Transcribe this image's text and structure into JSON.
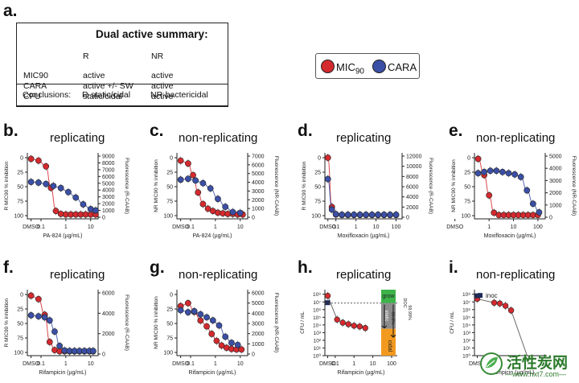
{
  "summary": {
    "label": "a.",
    "title": "Dual active summary:",
    "col_r": "R",
    "col_nr": "NR",
    "rows": [
      {
        "name": "MIC90",
        "r": "active",
        "nr": "active"
      },
      {
        "name": "CARA",
        "r": "active +/- SW",
        "nr": "active"
      },
      {
        "name": "CFU",
        "r": "static/cidal",
        "nr": "active"
      }
    ],
    "conclusion_label": "Conclusions:",
    "conclusion_r": "R-static/cidal",
    "conclusion_nr": "NR-bactericidal"
  },
  "legend": {
    "mic_label": "MIC",
    "mic_sub": "90",
    "cara_label": "CARA",
    "mic_color": "#d42a2f",
    "cara_color": "#3b4fa6"
  },
  "colors": {
    "red": "#d42a2f",
    "blue": "#3b4fa6",
    "grow": "#3db34a",
    "cidal": "#f29a1f",
    "grey": "#8c8c8c"
  },
  "watermark": {
    "text": "活性炭网",
    "url": "—www.hxt7.com—"
  },
  "chart_data": [
    {
      "id": "b",
      "label": "b.",
      "title": "replicating",
      "type": "scatter",
      "xlabel": "PA-824 (µg/mL)",
      "ylabel": "R MIC90 % inhibition",
      "ylabel2": "Fluorescence (R-CAAB)",
      "x_ticks": [
        "DMSO",
        "0.1",
        "1",
        "10"
      ],
      "y_ticks": [
        "0",
        "25",
        "50",
        "75",
        "100"
      ],
      "y2_ticks": [
        "0",
        "1000",
        "2000",
        "3000",
        "4000",
        "5000",
        "6000",
        "7000",
        "8000",
        "9000"
      ],
      "x_range": [
        -1.55,
        1.3
      ],
      "y2_max": 9000,
      "series": [
        {
          "name": "MIC90",
          "x": [
            -1.4,
            -1.1,
            -0.8,
            -0.6,
            -0.4,
            -0.2,
            0.0,
            0.2,
            0.4,
            0.6,
            0.8,
            1.0,
            1.2
          ],
          "y": [
            2,
            5,
            15,
            52,
            92,
            97,
            98,
            98,
            98,
            98,
            98,
            98,
            98
          ]
        },
        {
          "name": "CARA",
          "x": [
            -1.4,
            -1.1,
            -0.8,
            -0.5,
            -0.2,
            0.1,
            0.4,
            0.7,
            1.0,
            1.2
          ],
          "y": [
            5200,
            5100,
            4900,
            4600,
            4300,
            3700,
            2900,
            1900,
            1200,
            1000
          ]
        }
      ]
    },
    {
      "id": "c",
      "label": "c.",
      "title": "non-replicating",
      "type": "scatter",
      "xlabel": "PA-824 (µg/mL)",
      "ylabel": "NR MIC90 % inhibition",
      "ylabel2": "Fluorescence (NR-CAAB)",
      "x_ticks": [
        "DMSO",
        "0.1",
        "1",
        "10"
      ],
      "y_ticks": [
        "0",
        "25",
        "50",
        "75",
        "100"
      ],
      "y2_ticks": [
        "0",
        "1000",
        "2000",
        "3000",
        "4000",
        "5000",
        "6000",
        "7000"
      ],
      "x_range": [
        -1.55,
        1.3
      ],
      "y2_max": 7000,
      "series": [
        {
          "name": "MIC90",
          "x": [
            -1.4,
            -1.1,
            -0.9,
            -0.7,
            -0.5,
            -0.3,
            -0.1,
            0.1,
            0.3,
            0.5,
            0.7,
            0.9,
            1.1
          ],
          "y": [
            5,
            10,
            30,
            60,
            80,
            88,
            92,
            95,
            96,
            97,
            97,
            98,
            98
          ]
        },
        {
          "name": "CARA",
          "x": [
            -1.4,
            -1.1,
            -0.8,
            -0.5,
            -0.2,
            0.1,
            0.4,
            0.7,
            1.0
          ],
          "y": [
            4300,
            4400,
            4200,
            3900,
            3300,
            2100,
            1200,
            600,
            500
          ]
        }
      ]
    },
    {
      "id": "d",
      "label": "d.",
      "title": "replicating",
      "type": "scatter",
      "xlabel": "Moxifloxacin (µg/mL)",
      "ylabel": "R MIC90 % inhibition",
      "ylabel2": "Fluorescence (R-CAAB)",
      "x_ticks": [
        "DMSO",
        "0.1",
        "1",
        "10",
        "100"
      ],
      "y_ticks": [
        "0",
        "25",
        "50",
        "75",
        "100"
      ],
      "y2_ticks": [
        "0",
        "2000",
        "4000",
        "6000",
        "8000",
        "10000",
        "12000"
      ],
      "x_range": [
        -1.55,
        2.3
      ],
      "y2_max": 12000,
      "series": [
        {
          "name": "MIC90",
          "x": [
            -1.4,
            -1.2,
            -1.0,
            -0.7,
            -0.4,
            -0.1,
            0.2,
            0.5,
            0.8,
            1.1,
            1.4,
            1.7,
            2.0
          ],
          "y": [
            0,
            85,
            98,
            99,
            99,
            99,
            99,
            99,
            99,
            99,
            99,
            99,
            99
          ]
        },
        {
          "name": "CARA",
          "x": [
            -1.4,
            -1.2,
            -1.0,
            -0.7,
            -0.4,
            -0.1,
            0.2,
            0.5,
            0.8,
            1.1,
            1.4,
            1.7,
            2.0
          ],
          "y": [
            7500,
            1500,
            600,
            500,
            500,
            500,
            500,
            500,
            500,
            500,
            500,
            500,
            500
          ]
        }
      ]
    },
    {
      "id": "e",
      "label": "e.",
      "title": "non-replicating",
      "type": "scatter",
      "xlabel": "Moxifloxacin (µg/mL)",
      "ylabel": "NR MIC90 % inhibition",
      "ylabel2": "Fluorescence (NR-CAAB)",
      "x_ticks": [
        "DMSO",
        "1",
        "10",
        "100"
      ],
      "y_ticks": [
        "0",
        "25",
        "50",
        "75",
        "100"
      ],
      "y2_ticks": [
        "0",
        "1000",
        "2000",
        "3000",
        "4000",
        "5000"
      ],
      "x_range": [
        -0.6,
        2.3
      ],
      "y2_max": 5000,
      "series": [
        {
          "name": "MIC90",
          "x": [
            -0.45,
            -0.2,
            0.0,
            0.2,
            0.4,
            0.6,
            0.8,
            1.0,
            1.2,
            1.4,
            1.6,
            1.8,
            2.0
          ],
          "y": [
            2,
            30,
            65,
            95,
            99,
            99,
            99,
            99,
            99,
            99,
            99,
            99,
            99
          ]
        },
        {
          "name": "CARA",
          "x": [
            -0.45,
            -0.2,
            0.05,
            0.3,
            0.55,
            0.8,
            1.05,
            1.3,
            1.55,
            1.8,
            2.05
          ],
          "y": [
            3600,
            3700,
            3800,
            3800,
            3700,
            3600,
            3500,
            3300,
            2200,
            1100,
            400
          ]
        }
      ]
    },
    {
      "id": "f",
      "label": "f.",
      "title": "replicating",
      "type": "scatter",
      "xlabel": "Rifampicin (µg/mL)",
      "ylabel": "R MIC90 % inhibition",
      "ylabel2": "Fluorescence (R-CAAB)",
      "x_ticks": [
        "DMSO",
        "0.1",
        "1",
        "10"
      ],
      "y_ticks": [
        "0",
        "25",
        "50",
        "75",
        "100"
      ],
      "y2_ticks": [
        "0",
        "2000",
        "4000",
        "6000"
      ],
      "x_range": [
        -1.55,
        1.3
      ],
      "y2_max": 6000,
      "series": [
        {
          "name": "MIC90",
          "x": [
            -1.4,
            -1.1,
            -0.85,
            -0.65,
            -0.45,
            -0.25,
            -0.05,
            0.15,
            0.35,
            0.55,
            0.75,
            0.95,
            1.1
          ],
          "y": [
            2,
            8,
            35,
            82,
            96,
            98,
            98,
            98,
            98,
            98,
            98,
            98,
            98
          ]
        },
        {
          "name": "CARA",
          "x": [
            -1.4,
            -1.1,
            -0.85,
            -0.65,
            -0.45,
            -0.25,
            -0.05,
            0.15,
            0.35,
            0.55,
            0.75,
            0.95,
            1.1
          ],
          "y": [
            3800,
            3700,
            3600,
            3300,
            2200,
            800,
            350,
            300,
            300,
            300,
            300,
            300,
            300
          ]
        }
      ]
    },
    {
      "id": "g",
      "label": "g.",
      "title": "non-replicating",
      "type": "scatter",
      "xlabel": "Rifampicin (µg/mL)",
      "ylabel": "NR MIC90 % inhibition",
      "ylabel2": "Fluorescence (NR-CAAB)",
      "x_ticks": [
        "DMSO",
        "0.1",
        "1",
        "10"
      ],
      "y_ticks": [
        "0",
        "25",
        "50",
        "75",
        "100"
      ],
      "y2_ticks": [
        "0",
        "1000",
        "2000",
        "3000",
        "4000",
        "5000",
        "6000"
      ],
      "x_range": [
        -1.55,
        1.3
      ],
      "y2_max": 6000,
      "series": [
        {
          "name": "MIC90",
          "x": [
            -1.4,
            -1.1,
            -0.85,
            -0.6,
            -0.35,
            -0.15,
            0.05,
            0.25,
            0.45,
            0.65,
            0.85,
            1.05
          ],
          "y": [
            20,
            15,
            30,
            45,
            55,
            68,
            80,
            88,
            92,
            94,
            95,
            95
          ]
        },
        {
          "name": "CARA",
          "x": [
            -1.4,
            -1.1,
            -0.85,
            -0.6,
            -0.35,
            -0.1,
            0.15,
            0.4,
            0.65,
            0.9
          ],
          "y": [
            4300,
            4100,
            4200,
            3900,
            3600,
            3300,
            2800,
            1700,
            1100,
            900
          ]
        }
      ]
    },
    {
      "id": "h",
      "label": "h.",
      "title": "replicating",
      "type": "scatter",
      "xlabel": "Rifampicin (µg/mL)",
      "ylabel": "CFU / mL",
      "x_ticks": [
        "DMSO",
        "0.1",
        "1",
        "10",
        "100"
      ],
      "y_ticks": [
        "10⁰",
        "10¹",
        "10²",
        "10³",
        "10⁴",
        "10⁵",
        "10⁶",
        "10⁷",
        "10⁸"
      ],
      "x_range": [
        -1.55,
        2.3
      ],
      "y_range": [
        0,
        8.6
      ],
      "series": [
        {
          "name": "MIC90",
          "x": [
            -1.4,
            -0.9,
            -0.6,
            -0.3,
            0.0,
            0.3,
            0.6
          ],
          "y": [
            7.8,
            4.7,
            4.3,
            4.1,
            3.9,
            3.8,
            3.6
          ]
        },
        {
          "name": "inoc",
          "x": [
            -1.4
          ],
          "y": [
            6.9
          ]
        }
      ],
      "inoc_level": 6.85,
      "annotations": {
        "grow": "grow",
        "cidal": "cidal",
        "static": "static",
        "pct_a": "99.9%",
        "pct_b": "99.99%",
        "doc": "DOC"
      }
    },
    {
      "id": "i",
      "label": "i.",
      "title": "non-replicating",
      "type": "scatter",
      "xlabel": "Rifampicin (µg/mL)",
      "ylabel": "CFU / mL",
      "x_ticks": [
        "DMSO"
      ],
      "y_ticks": [
        "10⁰",
        "10¹",
        "10²",
        "10³",
        "10⁴",
        "10⁵",
        "10⁶",
        "10⁷",
        "10⁸"
      ],
      "x_range": [
        -1.55,
        2.3
      ],
      "y_range": [
        0,
        8.6
      ],
      "legend_inoc": "inoc",
      "series": [
        {
          "name": "MIC90",
          "x": [
            -1.4,
            -0.5,
            -0.2,
            0.1,
            0.4
          ],
          "y": [
            7.4,
            6.9,
            6.8,
            6.5,
            5.9
          ]
        },
        {
          "name": "inoc",
          "x": [
            -1.4
          ],
          "y": [
            7.8
          ]
        }
      ],
      "tail": {
        "x": 1.25,
        "y": 0.0
      }
    }
  ]
}
